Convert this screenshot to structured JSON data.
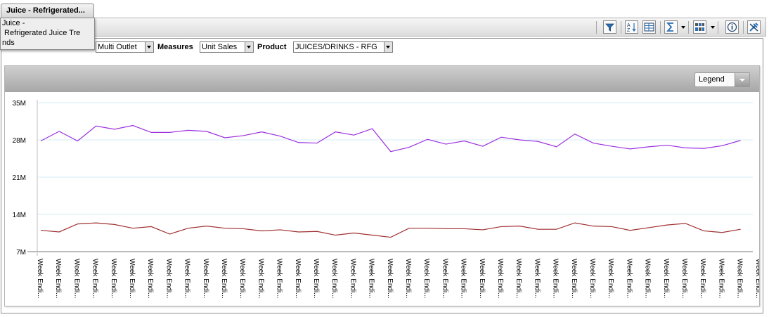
{
  "window": {
    "tab_title": "Juice - Refrigerated...",
    "tooltip_text": "Juice -\n Refrigerated Juice Tre\nnds"
  },
  "filters": {
    "geography_value": "Multi Outlet",
    "measures_label": "Measures",
    "measures_value": "Unit Sales",
    "product_label": "Product",
    "product_value": "JUICES/DRINKS - RFG"
  },
  "toolbar": {
    "icons": [
      "filter-icon",
      "sort-icon",
      "select-columns-icon",
      "sum-icon",
      "chart-type-icon",
      "info-icon",
      "tools-icon"
    ]
  },
  "legend": {
    "label": "Legend"
  },
  "colors": {
    "series_1": "#9b30e0",
    "series_2": "#a03030",
    "gridline": "#d6ecf7"
  },
  "chart_data": {
    "type": "line",
    "title": "",
    "xlabel": "",
    "ylabel": "",
    "ylim": [
      7000000,
      35000000
    ],
    "yticks": [
      {
        "value": 7000000,
        "label": "7M"
      },
      {
        "value": 14000000,
        "label": "14M"
      },
      {
        "value": 21000000,
        "label": "21M"
      },
      {
        "value": 28000000,
        "label": "28M"
      },
      {
        "value": 35000000,
        "label": "35M"
      }
    ],
    "grid": true,
    "categories": [
      "Week Endi...",
      "Week Endi...",
      "Week Endi...",
      "Week Endi...",
      "Week Endi...",
      "Week Endi...",
      "Week Endi...",
      "Week Endi...",
      "Week Endi...",
      "Week Endi...",
      "Week Endi...",
      "Week Endi...",
      "Week Endi...",
      "Week Endi...",
      "Week Endi...",
      "Week Endi...",
      "Week Endi...",
      "Week Endi...",
      "Week Endi...",
      "Week Endi...",
      "Week Endi...",
      "Week Endi...",
      "Week Endi...",
      "Week Endi...",
      "Week Endi...",
      "Week Endi...",
      "Week Endi...",
      "Week Endi...",
      "Week Endi...",
      "Week Endi...",
      "Week Endi...",
      "Week Endi...",
      "Week Endi...",
      "Week Endi...",
      "Week Endi...",
      "Week Endi...",
      "Week Endi...",
      "Week Endi...",
      "Week Endi...",
      "Week Endi..."
    ],
    "series": [
      {
        "color": "#9b30e0",
        "values": [
          27.8,
          29.6,
          27.8,
          30.6,
          30.0,
          30.7,
          29.4,
          29.4,
          29.8,
          29.6,
          28.4,
          28.8,
          29.5,
          28.7,
          27.5,
          27.4,
          29.5,
          28.9,
          30.1,
          25.8,
          26.6,
          28.1,
          27.2,
          27.8,
          26.8,
          28.5,
          28.0,
          27.7,
          26.7,
          29.1,
          27.4,
          26.8,
          26.3,
          26.7,
          27.0,
          26.5,
          26.4,
          26.9,
          27.9,
          null
        ]
      },
      {
        "color": "#a03030",
        "values": [
          11.0,
          10.7,
          12.2,
          12.4,
          12.1,
          11.4,
          11.7,
          10.3,
          11.4,
          11.8,
          11.4,
          11.3,
          10.9,
          11.1,
          10.7,
          10.8,
          10.1,
          10.5,
          10.1,
          9.7,
          11.4,
          11.4,
          11.3,
          11.3,
          11.1,
          11.7,
          11.8,
          11.2,
          11.2,
          12.4,
          11.8,
          11.7,
          11.0,
          11.5,
          12.0,
          12.3,
          10.9,
          10.6,
          11.2,
          null
        ]
      }
    ]
  }
}
